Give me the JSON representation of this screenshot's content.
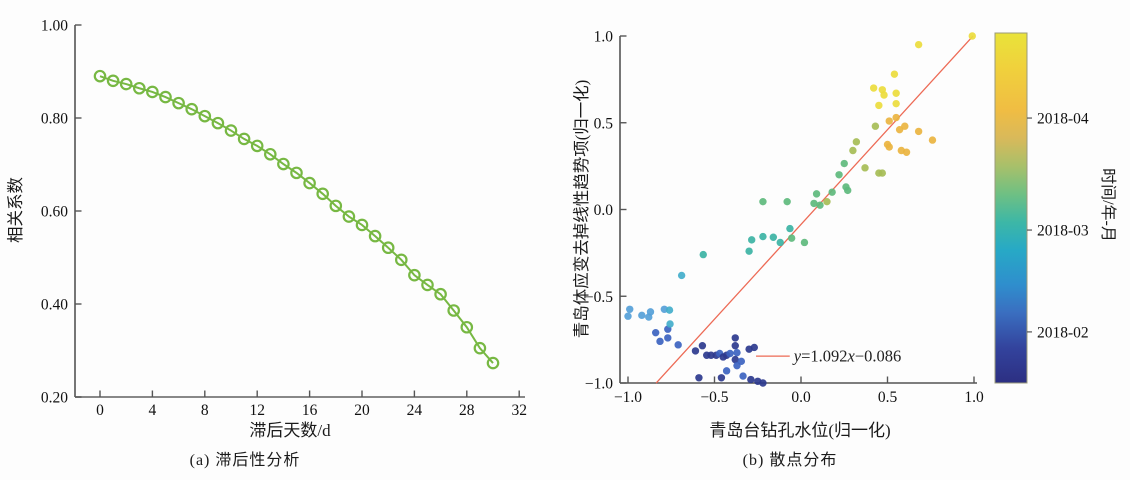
{
  "figure": {
    "background": "#fdfdfd"
  },
  "chart_data": [
    {
      "type": "line",
      "panel": "a",
      "caption": "(a) 滞后性分析",
      "xlabel": "滞后天数/d",
      "ylabel": "相关系数",
      "xlim": [
        0,
        32
      ],
      "ylim": [
        0.2,
        1.0
      ],
      "grid": false,
      "xticks": [
        0,
        4,
        8,
        12,
        16,
        20,
        24,
        28,
        32
      ],
      "ytick_labels": [
        "0.20",
        "0.40",
        "0.60",
        "0.80",
        "1.00"
      ],
      "ytick_values": [
        0.2,
        0.4,
        0.6,
        0.8,
        1.0
      ],
      "line_color": "#77b843",
      "marker": "open-circle",
      "x": [
        0,
        1,
        2,
        3,
        4,
        5,
        6,
        7,
        8,
        9,
        10,
        11,
        12,
        13,
        14,
        15,
        16,
        17,
        18,
        19,
        20,
        21,
        22,
        23,
        24,
        25,
        26,
        27,
        28,
        29,
        30
      ],
      "values": [
        0.89,
        0.88,
        0.873,
        0.864,
        0.856,
        0.845,
        0.832,
        0.819,
        0.804,
        0.789,
        0.773,
        0.755,
        0.74,
        0.722,
        0.701,
        0.682,
        0.66,
        0.637,
        0.611,
        0.588,
        0.57,
        0.546,
        0.521,
        0.495,
        0.462,
        0.441,
        0.421,
        0.386,
        0.35,
        0.305,
        0.273
      ]
    },
    {
      "type": "scatter",
      "panel": "b",
      "caption": "(b) 散点分布",
      "xlabel": "青岛台钻孔水位(归一化)",
      "ylabel": "青岛体应变去掉线性趋势项(归一化)",
      "xlim": [
        -1,
        1
      ],
      "ylim": [
        -1,
        1
      ],
      "grid": false,
      "xtick_values": [
        -1,
        -0.5,
        0,
        0.5,
        1
      ],
      "xtick_labels": [
        "−1.0",
        "−0.5",
        "0.0",
        "0.5",
        "1.0"
      ],
      "ytick_values": [
        -1,
        -0.5,
        0,
        0.5,
        1
      ],
      "ytick_labels": [
        "−1.0",
        "−0.5",
        "0.0",
        "0.5",
        "1.0"
      ],
      "fit_line": {
        "label": "y=1.092x−0.086",
        "slope": 1.092,
        "intercept": -0.086,
        "color": "#ed6a55",
        "x_start": -0.837,
        "x_end": 0.994
      },
      "annotation": {
        "text": "y=1.092x−0.086",
        "leader_y": -0.845,
        "leader_x1": -0.26,
        "leader_x2": -0.065
      },
      "palette": {
        "n": "#2d3a8e",
        "b": "#3c63c0",
        "l": "#55a0d8",
        "c": "#43aecb",
        "t": "#3cb3a4",
        "g": "#5eba7d",
        "o": "#a6bd56",
        "y": "#ecdc3d",
        "a": "#eab440"
      },
      "points": [
        [
          -0.61,
          -0.815,
          "n"
        ],
        [
          -0.57,
          -0.785,
          "n"
        ],
        [
          -0.545,
          -0.84,
          "n"
        ],
        [
          -0.52,
          -0.84,
          "n"
        ],
        [
          -0.49,
          -0.84,
          "n"
        ],
        [
          -0.47,
          -0.83,
          "b"
        ],
        [
          -0.45,
          -0.85,
          "n"
        ],
        [
          -0.43,
          -0.84,
          "n"
        ],
        [
          -0.41,
          -0.83,
          "b"
        ],
        [
          -0.38,
          -0.74,
          "n"
        ],
        [
          -0.38,
          -0.785,
          "n"
        ],
        [
          -0.37,
          -0.825,
          "b"
        ],
        [
          -0.38,
          -0.865,
          "n"
        ],
        [
          -0.37,
          -0.9,
          "b"
        ],
        [
          -0.43,
          -0.93,
          "b"
        ],
        [
          -0.46,
          -0.97,
          "n"
        ],
        [
          -0.59,
          -0.97,
          "n"
        ],
        [
          -0.3,
          -0.805,
          "n"
        ],
        [
          -0.27,
          -0.795,
          "n"
        ],
        [
          -0.345,
          -0.875,
          "b"
        ],
        [
          -0.335,
          -0.96,
          "b"
        ],
        [
          -0.29,
          -0.98,
          "n"
        ],
        [
          -0.25,
          -0.99,
          "n"
        ],
        [
          -0.22,
          -1.0,
          "n"
        ],
        [
          -0.84,
          -0.71,
          "b"
        ],
        [
          -0.815,
          -0.76,
          "b"
        ],
        [
          -0.77,
          -0.69,
          "b"
        ],
        [
          -0.77,
          -0.74,
          "b"
        ],
        [
          -0.71,
          -0.78,
          "b"
        ],
        [
          -1.0,
          -0.615,
          "l"
        ],
        [
          -0.99,
          -0.575,
          "l"
        ],
        [
          -0.92,
          -0.61,
          "l"
        ],
        [
          -0.88,
          -0.62,
          "l"
        ],
        [
          -0.87,
          -0.59,
          "l"
        ],
        [
          -0.79,
          -0.575,
          "l"
        ],
        [
          -0.76,
          -0.58,
          "c"
        ],
        [
          -0.757,
          -0.66,
          "c"
        ],
        [
          -0.69,
          -0.38,
          "c"
        ],
        [
          -0.565,
          -0.26,
          "t"
        ],
        [
          -0.3,
          -0.24,
          "t"
        ],
        [
          -0.285,
          -0.175,
          "t"
        ],
        [
          -0.22,
          -0.156,
          "t"
        ],
        [
          -0.16,
          -0.16,
          "t"
        ],
        [
          -0.12,
          -0.19,
          "t"
        ],
        [
          -0.064,
          -0.11,
          "t"
        ],
        [
          -0.054,
          -0.165,
          "g"
        ],
        [
          0.02,
          -0.19,
          "g"
        ],
        [
          -0.22,
          0.045,
          "g"
        ],
        [
          -0.08,
          0.045,
          "g"
        ],
        [
          0.075,
          0.035,
          "g"
        ],
        [
          0.11,
          0.025,
          "g"
        ],
        [
          0.09,
          0.09,
          "g"
        ],
        [
          0.18,
          0.1,
          "g"
        ],
        [
          0.26,
          0.13,
          "g"
        ],
        [
          0.27,
          0.11,
          "g"
        ],
        [
          0.22,
          0.2,
          "g"
        ],
        [
          0.25,
          0.265,
          "g"
        ],
        [
          0.15,
          0.045,
          "o"
        ],
        [
          0.32,
          0.39,
          "o"
        ],
        [
          0.3,
          0.34,
          "o"
        ],
        [
          0.37,
          0.24,
          "o"
        ],
        [
          0.45,
          0.21,
          "o"
        ],
        [
          0.47,
          0.21,
          "o"
        ],
        [
          0.43,
          0.48,
          "o"
        ],
        [
          0.54,
          0.78,
          "y"
        ],
        [
          0.42,
          0.7,
          "y"
        ],
        [
          0.47,
          0.69,
          "y"
        ],
        [
          0.48,
          0.66,
          "y"
        ],
        [
          0.55,
          0.67,
          "y"
        ],
        [
          0.45,
          0.6,
          "y"
        ],
        [
          0.55,
          0.61,
          "y"
        ],
        [
          0.68,
          0.95,
          "y"
        ],
        [
          0.99,
          1.0,
          "y"
        ],
        [
          0.51,
          0.51,
          "a"
        ],
        [
          0.55,
          0.53,
          "a"
        ],
        [
          0.6,
          0.48,
          "a"
        ],
        [
          0.57,
          0.46,
          "a"
        ],
        [
          0.68,
          0.45,
          "a"
        ],
        [
          0.76,
          0.4,
          "a"
        ],
        [
          0.5,
          0.375,
          "a"
        ],
        [
          0.51,
          0.36,
          "a"
        ],
        [
          0.58,
          0.34,
          "a"
        ],
        [
          0.61,
          0.33,
          "a"
        ]
      ],
      "colorbar": {
        "title": "时间/年-月",
        "ticks": [
          {
            "label": "2018-04",
            "pos": 0.243
          },
          {
            "label": "2018-03",
            "pos": 0.563
          },
          {
            "label": "2018-02",
            "pos": 0.854
          }
        ],
        "gradient": [
          [
            "0%",
            "#e9e33a"
          ],
          [
            "10%",
            "#f0d13c"
          ],
          [
            "22%",
            "#f0bd43"
          ],
          [
            "30%",
            "#d9b95a"
          ],
          [
            "38%",
            "#a8c06a"
          ],
          [
            "46%",
            "#6fc083"
          ],
          [
            "54%",
            "#3db7a6"
          ],
          [
            "62%",
            "#27a9c6"
          ],
          [
            "72%",
            "#2f8ecd"
          ],
          [
            "80%",
            "#3a6ec0"
          ],
          [
            "90%",
            "#33439d"
          ],
          [
            "100%",
            "#2c2f82"
          ]
        ]
      }
    }
  ]
}
